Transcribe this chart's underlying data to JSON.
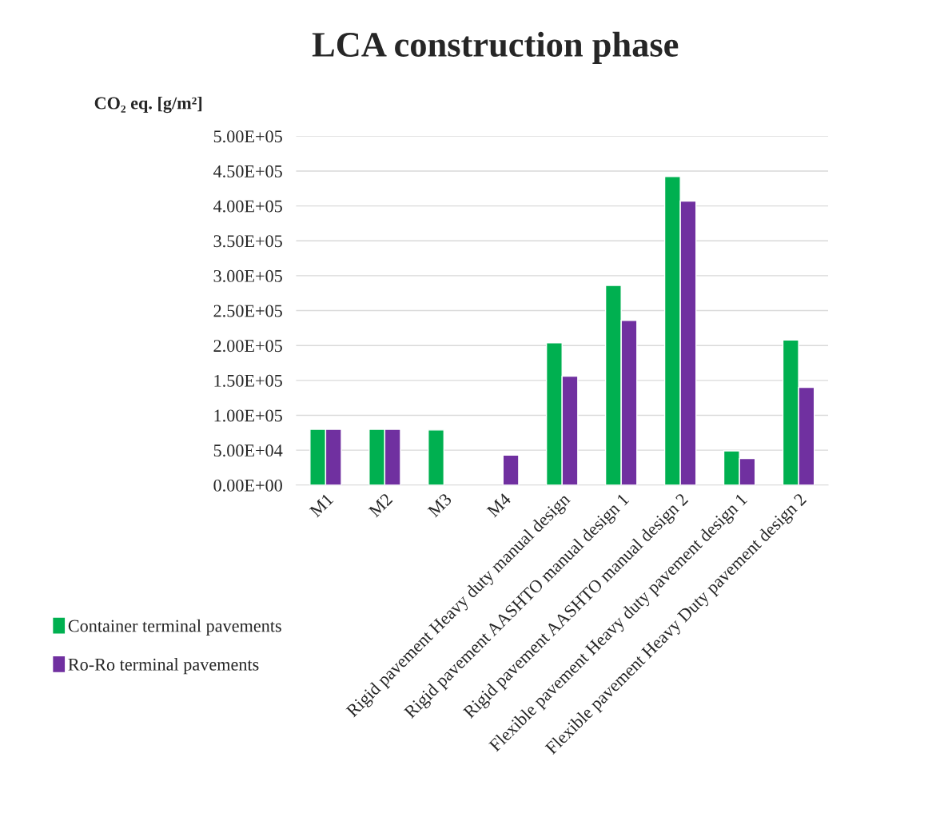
{
  "chart_data": {
    "type": "bar",
    "title": "LCA construction phase",
    "ylabel": "CO₂ eq. [g/m²]",
    "categories": [
      "M1",
      "M2",
      "M3",
      "M4",
      "Rigid pavement Heavy duty manual design",
      "Rigid pavement AASHTO manual design 1",
      "Rigid pavement AASHTO manual design 2",
      "Flexible pavement Heavy duty pavement design 1",
      "Flexible pavement Heavy Duty pavement design 2"
    ],
    "series": [
      {
        "name": "Container terminal pavements",
        "color": "#00b050",
        "values": [
          80000,
          80000,
          79000,
          null,
          204000,
          286000,
          442000,
          49000,
          208000
        ]
      },
      {
        "name": "Ro-Ro terminal pavements",
        "color": "#7030a0",
        "values": [
          80000,
          80000,
          null,
          43000,
          156000,
          236000,
          407000,
          38000,
          140000
        ]
      }
    ],
    "ylim": [
      0,
      500000
    ],
    "yticks": [
      {
        "value": 0,
        "label": "0.00E+00"
      },
      {
        "value": 50000,
        "label": "5.00E+04"
      },
      {
        "value": 100000,
        "label": "1.00E+05"
      },
      {
        "value": 150000,
        "label": "1.50E+05"
      },
      {
        "value": 200000,
        "label": "2.00E+05"
      },
      {
        "value": 250000,
        "label": "2.50E+05"
      },
      {
        "value": 300000,
        "label": "3.00E+05"
      },
      {
        "value": 350000,
        "label": "3.50E+05"
      },
      {
        "value": 400000,
        "label": "4.00E+05"
      },
      {
        "value": 450000,
        "label": "4.50E+05"
      },
      {
        "value": 500000,
        "label": "5.00E+05"
      }
    ],
    "grid": "y",
    "legend": "left"
  }
}
